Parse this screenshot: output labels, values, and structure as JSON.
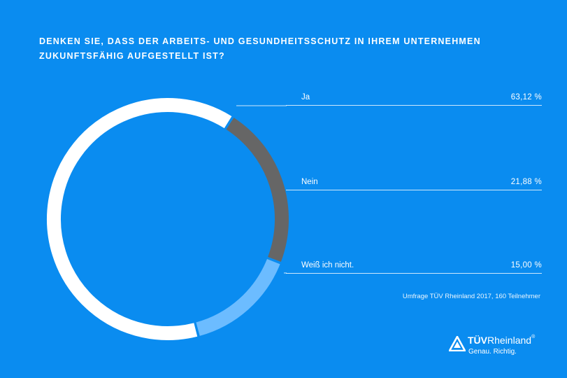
{
  "title_lines": [
    "DENKEN SIE, DASS DER ARBEITS- UND GESUNDHEITSSCHUTZ IN IHREM UNTERNEHMEN",
    "ZUKUNFTSFÄHIG AUFGESTELLT IST?"
  ],
  "chart_data": {
    "type": "pie",
    "variant": "donut",
    "title": "DENKEN SIE, DASS DER ARBEITS- UND GESUNDHEITSSCHUTZ IN IHREM UNTERNEHMEN ZUKUNFTSFÄHIG AUFGESTELLT IST?",
    "categories": [
      "Ja",
      "Nein",
      "Weiß ich nicht."
    ],
    "values": [
      63.12,
      21.88,
      15.0
    ],
    "value_labels": [
      "63,12 %",
      "21,88 %",
      "15,00 %"
    ],
    "colors": [
      "#ffffff",
      "#666666",
      "#6cbcff"
    ],
    "legend_placement": "right"
  },
  "colors": {
    "background": "#0a8cf0",
    "text": "#ffffff"
  },
  "source": "Umfrage TÜV Rheinland 2017, 160 Teilnehmer",
  "logo": {
    "brand_bold": "TÜV",
    "brand_light": "Rheinland",
    "registered": "®",
    "tagline": "Genau. Richtig.",
    "icon": "tuv-triangle-logo-icon"
  }
}
